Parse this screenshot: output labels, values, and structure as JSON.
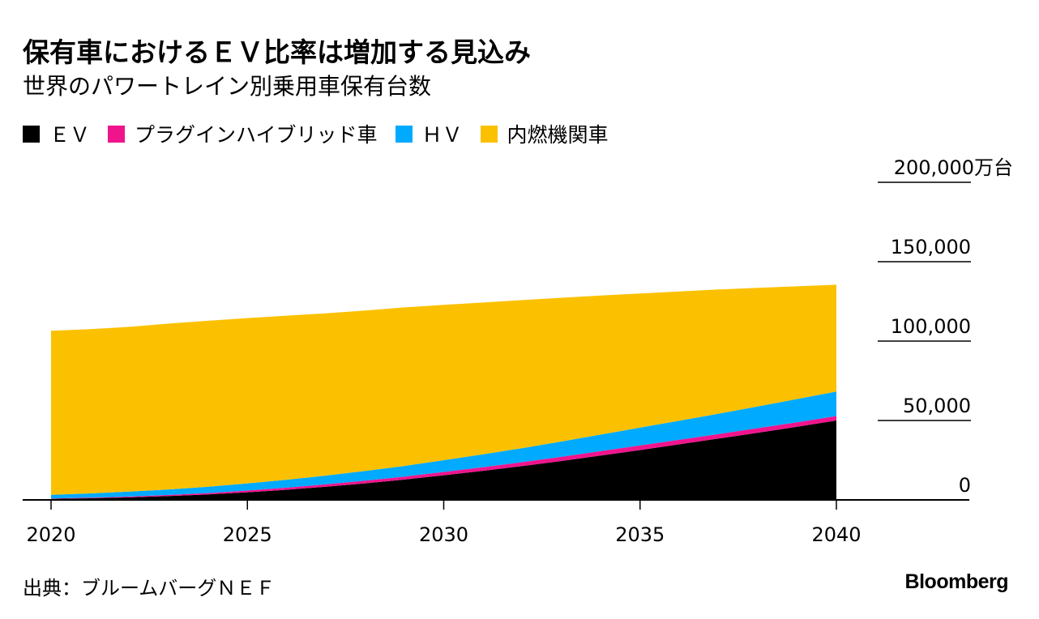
{
  "header": {
    "title": "保有車におけるＥＶ比率は増加する見込み",
    "subtitle": "世界のパワートレイン別乗用車保有台数"
  },
  "legend": [
    {
      "label": "ＥＶ",
      "color": "#000000"
    },
    {
      "label": "プラグインハイブリッド車",
      "color": "#f0148c"
    },
    {
      "label": "ＨＶ",
      "color": "#00aaff"
    },
    {
      "label": "内燃機関車",
      "color": "#fbc100"
    }
  ],
  "footer": {
    "source": "出典：ブルームバーグＮＥＦ",
    "brand": "Bloomberg"
  },
  "chart_data": {
    "type": "area",
    "stacked": true,
    "title": "保有車におけるＥＶ比率は増加する見込み",
    "subtitle": "世界のパワートレイン別乗用車保有台数",
    "unit": "万台",
    "x": [
      2020,
      2021,
      2022,
      2023,
      2024,
      2025,
      2026,
      2027,
      2028,
      2029,
      2030,
      2031,
      2032,
      2033,
      2034,
      2035,
      2036,
      2037,
      2038,
      2039,
      2040
    ],
    "series": [
      {
        "name": "ＥＶ",
        "color": "#000000",
        "values": [
          600,
          1000,
          1600,
          2400,
          3400,
          4800,
          6400,
          8300,
          10400,
          12800,
          15500,
          18300,
          21300,
          24500,
          27900,
          31400,
          35000,
          38600,
          42300,
          46000,
          50000
        ]
      },
      {
        "name": "プラグインハイブリッド車",
        "color": "#f0148c",
        "values": [
          300,
          400,
          500,
          700,
          900,
          1100,
          1300,
          1500,
          1700,
          1900,
          2100,
          2300,
          2500,
          2700,
          2800,
          2900,
          2900,
          2900,
          2900,
          2900,
          2800
        ]
      },
      {
        "name": "ＨＶ",
        "color": "#00aaff",
        "values": [
          2300,
          2700,
          3100,
          3500,
          4000,
          4500,
          5000,
          5500,
          6100,
          6700,
          7400,
          8100,
          8800,
          9600,
          10400,
          11200,
          12000,
          12800,
          13700,
          14600,
          15400
        ]
      },
      {
        "name": "内燃機関車",
        "color": "#fbc100",
        "values": [
          103300,
          103400,
          103800,
          104400,
          104500,
          104100,
          103300,
          102200,
          101100,
          99800,
          97800,
          95600,
          93200,
          90500,
          87600,
          84500,
          81400,
          78200,
          74600,
          71000,
          67300
        ]
      }
    ],
    "ylim": [
      0,
      200000
    ],
    "yticks": [
      0,
      50000,
      100000,
      150000,
      200000
    ],
    "ytick_labels": [
      "0",
      "50,000",
      "100,000",
      "150,000",
      "200,000万台"
    ],
    "xlim": [
      2020,
      2044
    ],
    "xticks": [
      2020,
      2025,
      2030,
      2035,
      2040
    ],
    "xtick_labels": [
      "2020",
      "2025",
      "2030",
      "2035",
      "2040"
    ],
    "xlabel": "",
    "ylabel": "",
    "grid": false,
    "legend_position": "top-left"
  }
}
